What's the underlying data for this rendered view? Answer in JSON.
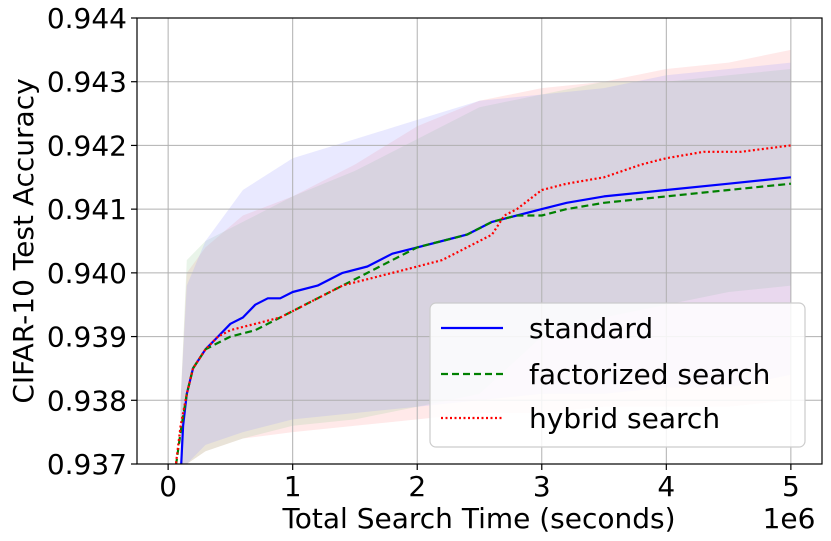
{
  "chart_data": {
    "type": "line",
    "xlabel": "Total Search Time (seconds)",
    "ylabel": "CIFAR-10 Test Accuracy",
    "x_offset_label": "1e6",
    "xlim": [
      -0.25,
      5.25
    ],
    "ylim": [
      0.937,
      0.944
    ],
    "x_ticks": [
      0,
      1,
      2,
      3,
      4,
      5
    ],
    "x_tick_labels": [
      "0",
      "1",
      "2",
      "3",
      "4",
      "5"
    ],
    "y_ticks": [
      0.937,
      0.938,
      0.939,
      0.94,
      0.941,
      0.942,
      0.943,
      0.944
    ],
    "y_tick_labels": [
      "0.937",
      "0.938",
      "0.939",
      "0.940",
      "0.941",
      "0.942",
      "0.943",
      "0.944"
    ],
    "grid": true,
    "legend_position": "bottom-right",
    "series": [
      {
        "name": "standard",
        "color": "#0000ff",
        "dash": "solid",
        "x": [
          0.1,
          0.12,
          0.15,
          0.2,
          0.3,
          0.4,
          0.5,
          0.6,
          0.7,
          0.8,
          0.9,
          1.0,
          1.2,
          1.4,
          1.6,
          1.8,
          2.0,
          2.2,
          2.4,
          2.6,
          2.8,
          3.0,
          3.2,
          3.5,
          4.0,
          4.5,
          5.0
        ],
        "y": [
          0.9368,
          0.9376,
          0.9381,
          0.9385,
          0.9388,
          0.939,
          0.9392,
          0.9393,
          0.9395,
          0.9396,
          0.9396,
          0.9397,
          0.9398,
          0.94,
          0.9401,
          0.9403,
          0.9404,
          0.9405,
          0.9406,
          0.9408,
          0.9409,
          0.941,
          0.9411,
          0.9412,
          0.9413,
          0.9414,
          0.9415
        ]
      },
      {
        "name": "factorized search",
        "color": "#008000",
        "dash": "dashed",
        "x": [
          0.05,
          0.1,
          0.15,
          0.2,
          0.3,
          0.4,
          0.5,
          0.7,
          0.9,
          1.0,
          1.2,
          1.4,
          1.6,
          1.8,
          2.0,
          2.2,
          2.4,
          2.6,
          2.8,
          3.0,
          3.2,
          3.5,
          4.0,
          4.5,
          5.0
        ],
        "y": [
          0.9368,
          0.9375,
          0.9381,
          0.9385,
          0.9388,
          0.9389,
          0.939,
          0.9391,
          0.9393,
          0.9394,
          0.9396,
          0.9398,
          0.94,
          0.9402,
          0.9404,
          0.9405,
          0.9406,
          0.9408,
          0.9409,
          0.9409,
          0.941,
          0.9411,
          0.9412,
          0.9413,
          0.9414
        ]
      },
      {
        "name": "hybrid search",
        "color": "#ff0000",
        "dash": "dotted",
        "x": [
          0.05,
          0.1,
          0.15,
          0.2,
          0.3,
          0.4,
          0.5,
          0.7,
          0.9,
          1.0,
          1.2,
          1.4,
          1.6,
          1.8,
          2.0,
          2.2,
          2.4,
          2.6,
          2.7,
          2.8,
          3.0,
          3.2,
          3.5,
          3.8,
          4.0,
          4.3,
          4.6,
          5.0
        ],
        "y": [
          0.9368,
          0.9376,
          0.9381,
          0.9385,
          0.9388,
          0.939,
          0.9391,
          0.9392,
          0.9393,
          0.9394,
          0.9396,
          0.9398,
          0.9399,
          0.94,
          0.9401,
          0.9402,
          0.9404,
          0.9406,
          0.9409,
          0.941,
          0.9413,
          0.9414,
          0.9415,
          0.9417,
          0.9418,
          0.9419,
          0.9419,
          0.942
        ]
      }
    ],
    "bands": [
      {
        "color": "#ff9999",
        "x": [
          0.1,
          0.15,
          0.3,
          0.6,
          1.0,
          1.5,
          2.0,
          2.5,
          3.0,
          3.5,
          4.0,
          4.5,
          5.0
        ],
        "lower": [
          0.9362,
          0.937,
          0.9372,
          0.9374,
          0.9375,
          0.9376,
          0.9377,
          0.9378,
          0.9378,
          0.9379,
          0.9379,
          0.9379,
          0.938
        ],
        "upper": [
          0.938,
          0.94,
          0.9404,
          0.9409,
          0.9412,
          0.9417,
          0.9423,
          0.9427,
          0.9429,
          0.943,
          0.9432,
          0.9433,
          0.9435
        ]
      },
      {
        "color": "#99cc99",
        "x": [
          0.1,
          0.15,
          0.3,
          0.6,
          1.0,
          1.5,
          2.0,
          2.5,
          3.0,
          3.5,
          4.0,
          4.5,
          5.0
        ],
        "lower": [
          0.9362,
          0.937,
          0.9372,
          0.9374,
          0.9376,
          0.9377,
          0.9379,
          0.9381,
          0.939,
          0.9393,
          0.9395,
          0.9397,
          0.9398
        ],
        "upper": [
          0.938,
          0.9402,
          0.9405,
          0.9408,
          0.9412,
          0.9416,
          0.9421,
          0.9426,
          0.9428,
          0.943,
          0.943,
          0.9431,
          0.9432
        ]
      },
      {
        "color": "#9999ff",
        "x": [
          0.1,
          0.15,
          0.3,
          0.6,
          1.0,
          1.5,
          2.0,
          2.5,
          3.0,
          3.5,
          4.0,
          4.5,
          5.0
        ],
        "lower": [
          0.9365,
          0.937,
          0.9373,
          0.9375,
          0.9377,
          0.9378,
          0.9379,
          0.938,
          0.9381,
          0.9381,
          0.9382,
          0.9382,
          0.9384
        ],
        "upper": [
          0.938,
          0.9398,
          0.9405,
          0.9413,
          0.9418,
          0.9421,
          0.9424,
          0.9427,
          0.9428,
          0.9429,
          0.9431,
          0.9432,
          0.9433
        ]
      }
    ]
  }
}
